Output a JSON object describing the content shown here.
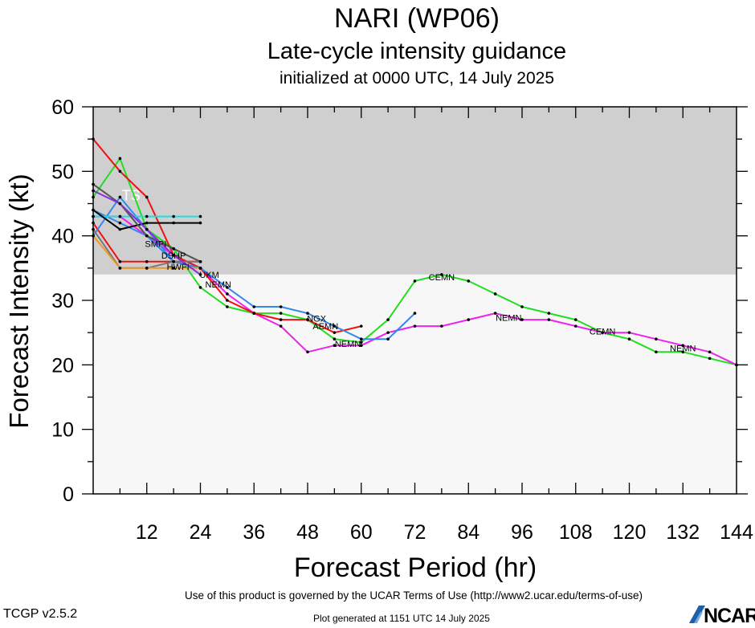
{
  "title": "NARI (WP06)",
  "subtitle": "Late-cycle intensity guidance",
  "subtitle2": "initialized at 0000 UTC, 14 July 2025",
  "footer": {
    "version": "TCGP v2.5.2",
    "terms": "Use of this product is governed by the UCAR Terms of Use (http://www2.ucar.edu/terms-of-use)",
    "generated": "Plot generated at 1151 UTC   14 July 2025",
    "logo": "NCAR"
  },
  "chart_data": {
    "type": "line",
    "title": "NARI (WP06)",
    "subtitle": "Late-cycle intensity guidance",
    "xlabel": "Forecast Period (hr)",
    "ylabel": "Forecast Intensity (kt)",
    "xlim": [
      0,
      144
    ],
    "ylim": [
      0,
      60
    ],
    "xticks": [
      12,
      24,
      36,
      48,
      60,
      72,
      84,
      96,
      108,
      120,
      132,
      144
    ],
    "yticks": [
      0,
      10,
      20,
      30,
      40,
      50,
      60
    ],
    "bands": [
      {
        "label": "TS",
        "from": 34,
        "to": 60,
        "color": "#cfcfcf"
      },
      {
        "label": "",
        "from": 0,
        "to": 34,
        "color": "#f7f7f7"
      }
    ],
    "series": [
      {
        "color": "#22dd22",
        "labels": [
          {
            "text": "CEMN",
            "x": 78,
            "y": 33.6
          },
          {
            "text": "CEMN",
            "x": 114,
            "y": 25.2
          }
        ],
        "points": [
          [
            0,
            46
          ],
          [
            6,
            52
          ],
          [
            12,
            41
          ],
          [
            18,
            38
          ],
          [
            24,
            32
          ],
          [
            30,
            29
          ],
          [
            36,
            28
          ],
          [
            42,
            28
          ],
          [
            48,
            27
          ],
          [
            54,
            24
          ],
          [
            60,
            23.5
          ],
          [
            66,
            27
          ],
          [
            72,
            33
          ],
          [
            78,
            34
          ],
          [
            84,
            33
          ],
          [
            90,
            31
          ],
          [
            96,
            29
          ],
          [
            102,
            28
          ],
          [
            108,
            27
          ],
          [
            114,
            25
          ],
          [
            120,
            24
          ],
          [
            126,
            22
          ],
          [
            132,
            22
          ],
          [
            138,
            21
          ],
          [
            144,
            20
          ]
        ]
      },
      {
        "color": "#ee22ee",
        "labels": [
          {
            "text": "NEMN",
            "x": 93,
            "y": 27.3
          },
          {
            "text": "NEMN",
            "x": 132,
            "y": 22.6
          },
          {
            "text": "NEMN",
            "x": 57,
            "y": 23.3
          }
        ],
        "points": [
          [
            0,
            43
          ],
          [
            6,
            43
          ],
          [
            12,
            40
          ],
          [
            18,
            37
          ],
          [
            24,
            35
          ],
          [
            30,
            31
          ],
          [
            36,
            28
          ],
          [
            42,
            26
          ],
          [
            48,
            22
          ],
          [
            54,
            23
          ],
          [
            60,
            23
          ],
          [
            66,
            25
          ],
          [
            72,
            26
          ],
          [
            78,
            26
          ],
          [
            84,
            27
          ],
          [
            90,
            28
          ],
          [
            96,
            27
          ],
          [
            102,
            27
          ],
          [
            108,
            26
          ],
          [
            114,
            25
          ],
          [
            120,
            25
          ],
          [
            126,
            24
          ],
          [
            132,
            23
          ],
          [
            138,
            22
          ],
          [
            144,
            20
          ]
        ]
      },
      {
        "color": "#ee1111",
        "labels": [],
        "points": [
          [
            0,
            55
          ],
          [
            6,
            50
          ],
          [
            12,
            46
          ],
          [
            18,
            37
          ],
          [
            24,
            35
          ],
          [
            30,
            30
          ],
          [
            36,
            28
          ],
          [
            42,
            27
          ],
          [
            48,
            27
          ],
          [
            54,
            25
          ],
          [
            60,
            26
          ]
        ]
      },
      {
        "color": "#ee1111",
        "labels": [],
        "points": [
          [
            0,
            42
          ],
          [
            6,
            36
          ],
          [
            12,
            36
          ],
          [
            18,
            36
          ],
          [
            24,
            36
          ]
        ]
      },
      {
        "color": "#3388ee",
        "labels": [
          {
            "text": "NGX",
            "x": 50,
            "y": 27.2
          }
        ],
        "points": [
          [
            0,
            40
          ],
          [
            6,
            46
          ],
          [
            12,
            41
          ],
          [
            18,
            36
          ],
          [
            24,
            35
          ],
          [
            30,
            32
          ],
          [
            36,
            29
          ],
          [
            42,
            29
          ],
          [
            48,
            28
          ],
          [
            54,
            26
          ],
          [
            60,
            24
          ],
          [
            66,
            24
          ],
          [
            72,
            28
          ]
        ]
      },
      {
        "color": "#3388ee",
        "labels": [],
        "points": [
          [
            0,
            44
          ],
          [
            6,
            42
          ],
          [
            12,
            40
          ],
          [
            18,
            36
          ],
          [
            24,
            35
          ]
        ]
      },
      {
        "color": "#22dddd",
        "labels": [],
        "points": [
          [
            0,
            43
          ],
          [
            6,
            43
          ],
          [
            12,
            43
          ],
          [
            18,
            43
          ],
          [
            24,
            43
          ]
        ]
      },
      {
        "color": "#000000",
        "labels": [
          {
            "text": "HWFI",
            "x": 19,
            "y": 35.2
          }
        ],
        "points": [
          [
            0,
            44
          ],
          [
            6,
            41
          ],
          [
            12,
            42
          ],
          [
            18,
            42
          ],
          [
            24,
            42
          ]
        ]
      },
      {
        "color": "#555555",
        "labels": [
          {
            "text": "DSHP",
            "x": 18,
            "y": 37
          },
          {
            "text": "AEMN",
            "x": 52,
            "y": 26
          }
        ],
        "points": [
          [
            0,
            48
          ],
          [
            6,
            45
          ],
          [
            12,
            40
          ],
          [
            18,
            38
          ],
          [
            24,
            36
          ]
        ]
      },
      {
        "color": "#777777",
        "labels": [],
        "points": [
          [
            0,
            41
          ],
          [
            6,
            35
          ],
          [
            12,
            35
          ],
          [
            18,
            36
          ],
          [
            24,
            36
          ]
        ]
      },
      {
        "color": "#ee9922",
        "labels": [],
        "points": [
          [
            0,
            40
          ],
          [
            6,
            35
          ],
          [
            12,
            35
          ],
          [
            18,
            35
          ],
          [
            24,
            35
          ]
        ]
      },
      {
        "color": "#8a2be2",
        "labels": [
          {
            "text": "SMPI",
            "x": 14,
            "y": 38.8
          },
          {
            "text": "UKM",
            "x": 26,
            "y": 34
          },
          {
            "text": "NEMN",
            "x": 28,
            "y": 32.5
          }
        ],
        "points": [
          [
            0,
            47
          ],
          [
            6,
            45
          ],
          [
            12,
            41
          ],
          [
            18,
            37
          ],
          [
            24,
            34
          ]
        ]
      }
    ]
  }
}
